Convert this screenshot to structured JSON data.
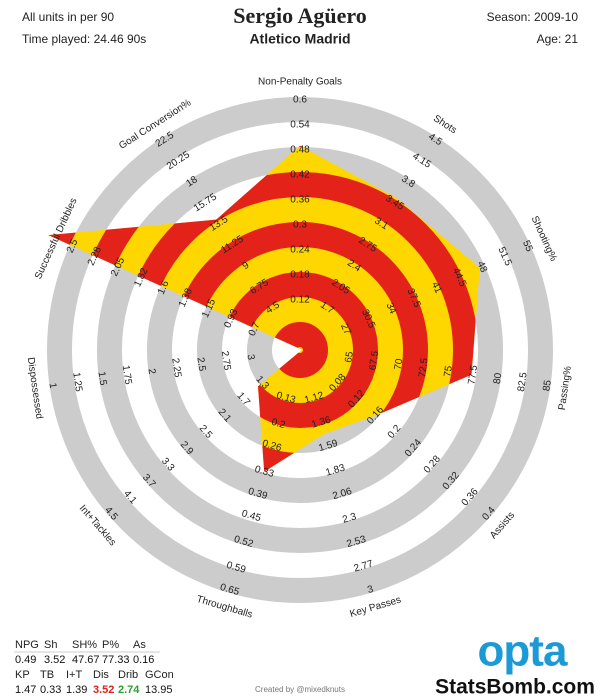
{
  "chart_data": {
    "type": "radar",
    "title": "Sergio Agüero",
    "subtitle": "Atletico Madrid",
    "subtitle_color": "#e0201b",
    "notes_left": [
      "All units in per 90",
      "Time played: 24.46 90s"
    ],
    "notes_right": [
      "Season: 2009-10",
      "Age: 21"
    ],
    "colors": {
      "ring": "#cccccc",
      "fill": "#ffd700",
      "stripe": "#e3231a"
    },
    "axes": [
      {
        "name": "Non-Penalty Goals",
        "lim": [
          0,
          0.6
        ],
        "ticks": [
          0.12,
          0.18,
          0.24,
          0.3,
          0.36,
          0.42,
          0.48,
          0.54,
          0.6
        ],
        "value": 0.49
      },
      {
        "name": "Shots",
        "lim": [
          1.0,
          4.5
        ],
        "ticks": [
          1.7,
          2.05,
          2.4,
          2.75,
          3.1,
          3.45,
          3.8,
          4.15,
          4.5
        ],
        "value": 3.52
      },
      {
        "name": "Shooting%",
        "lim": [
          20,
          55
        ],
        "ticks": [
          27,
          30.5,
          34,
          37.5,
          41,
          44.5,
          48,
          51.5,
          55
        ],
        "value": 47.67
      },
      {
        "name": "Passing%",
        "lim": [
          60,
          85
        ],
        "ticks": [
          65,
          67.5,
          70,
          72.5,
          75,
          77.5,
          80,
          82.5,
          85
        ],
        "value": 77.33
      },
      {
        "name": "Assists",
        "lim": [
          0,
          0.4
        ],
        "ticks": [
          0.08,
          0.12,
          0.16,
          0.2,
          0.24,
          0.28,
          0.32,
          0.36,
          0.4
        ],
        "value": 0.16
      },
      {
        "name": "Key Passes",
        "lim": [
          0.65,
          3
        ],
        "ticks": [
          1.12,
          1.36,
          1.59,
          1.83,
          2.06,
          2.3,
          2.53,
          2.77,
          3
        ],
        "value": 1.47
      },
      {
        "name": "Throughballs",
        "lim": [
          0,
          0.65
        ],
        "ticks": [
          0.13,
          0.2,
          0.26,
          0.33,
          0.39,
          0.45,
          0.52,
          0.59,
          0.65
        ],
        "value": 0.33
      },
      {
        "name": "Int+Tackles",
        "lim": [
          0.5,
          4.5
        ],
        "ticks": [
          1.3,
          1.7,
          2.1,
          2.5,
          2.9,
          3.3,
          3.7,
          4.1,
          4.5
        ],
        "value": 1.39
      },
      {
        "name": "Dispossessed",
        "lim": [
          3.5,
          1
        ],
        "ticks": [
          3,
          2.75,
          2.5,
          2.25,
          2,
          1.75,
          1.5,
          1.25,
          1
        ],
        "value": 3.52,
        "table_color": "#e0201b"
      },
      {
        "name": "Successful Dribbles",
        "lim": [
          0.25,
          2.5
        ],
        "ticks": [
          0.7,
          0.93,
          1.15,
          1.38,
          1.6,
          1.82,
          2.05,
          2.28,
          2.5
        ],
        "value": 2.74,
        "table_color": "#2e9e2e"
      },
      {
        "name": "Goal Conversion%",
        "lim": [
          0,
          22.5
        ],
        "ticks": [
          4.5,
          6.75,
          9,
          11.25,
          13.5,
          15.75,
          18,
          20.25,
          22.5
        ],
        "value": 13.95
      }
    ],
    "stats_table": {
      "headers_row1": [
        "NPG",
        "Sh",
        "SH%",
        "P%",
        "As"
      ],
      "headers_row2": [
        "KP",
        "TB",
        "I+T",
        "Dis",
        "Drib",
        "GCon"
      ]
    },
    "credit": "Created by @mixedknuts",
    "logo": "opta",
    "site": "StatsBomb.com"
  }
}
